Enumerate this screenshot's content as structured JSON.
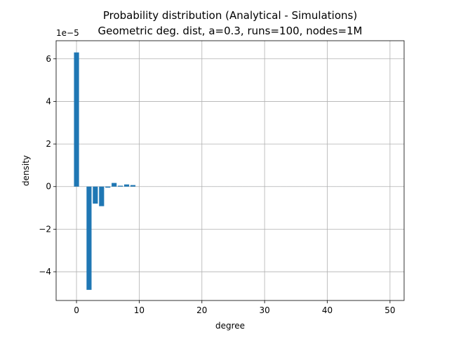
{
  "chart_data": {
    "type": "bar",
    "title_lines": [
      "Probability distribution (Analytical - Simulations)",
      "Geometric deg. dist, a=0.3, runs=100, nodes=1M"
    ],
    "xlabel": "degree",
    "ylabel": "density",
    "y_scale_label": "1e−5",
    "y_scale": 1e-05,
    "xlim": [
      -3.25,
      52.25
    ],
    "ylim": [
      -5.35e-05,
      6.85e-05
    ],
    "x_ticks": [
      0,
      10,
      20,
      30,
      40,
      50
    ],
    "x_tick_labels": [
      "0",
      "10",
      "20",
      "30",
      "40",
      "50"
    ],
    "y_ticks": [
      -4e-05,
      -2e-05,
      0,
      2e-05,
      4e-05,
      6e-05
    ],
    "y_tick_labels": [
      "−4",
      "−2",
      "0",
      "2",
      "4",
      "6"
    ],
    "grid": true,
    "bar_color": "#1f77b4",
    "bar_width": 0.8,
    "series": [
      {
        "x": [
          0,
          1,
          2,
          3,
          4,
          5,
          6,
          7,
          8,
          9,
          10,
          11,
          12,
          13,
          14,
          15,
          16,
          17,
          18,
          19,
          20,
          21,
          22,
          23,
          24,
          25,
          26,
          27,
          28,
          29,
          30,
          31,
          32,
          33,
          34,
          35,
          36,
          37,
          38,
          39,
          40,
          41,
          42,
          43,
          44,
          45,
          46,
          47,
          48,
          49
        ],
        "values": [
          6.3e-05,
          0,
          -4.85e-05,
          -8e-06,
          -9.2e-06,
          -5e-07,
          1.7e-06,
          4e-07,
          1e-06,
          7e-07,
          0,
          0,
          0,
          0,
          0,
          0,
          0,
          0,
          0,
          0,
          0,
          0,
          0,
          0,
          0,
          0,
          0,
          0,
          0,
          0,
          0,
          0,
          0,
          0,
          0,
          0,
          0,
          0,
          0,
          0,
          0,
          0,
          0,
          0,
          0,
          0,
          0,
          0,
          0,
          0
        ]
      }
    ]
  }
}
